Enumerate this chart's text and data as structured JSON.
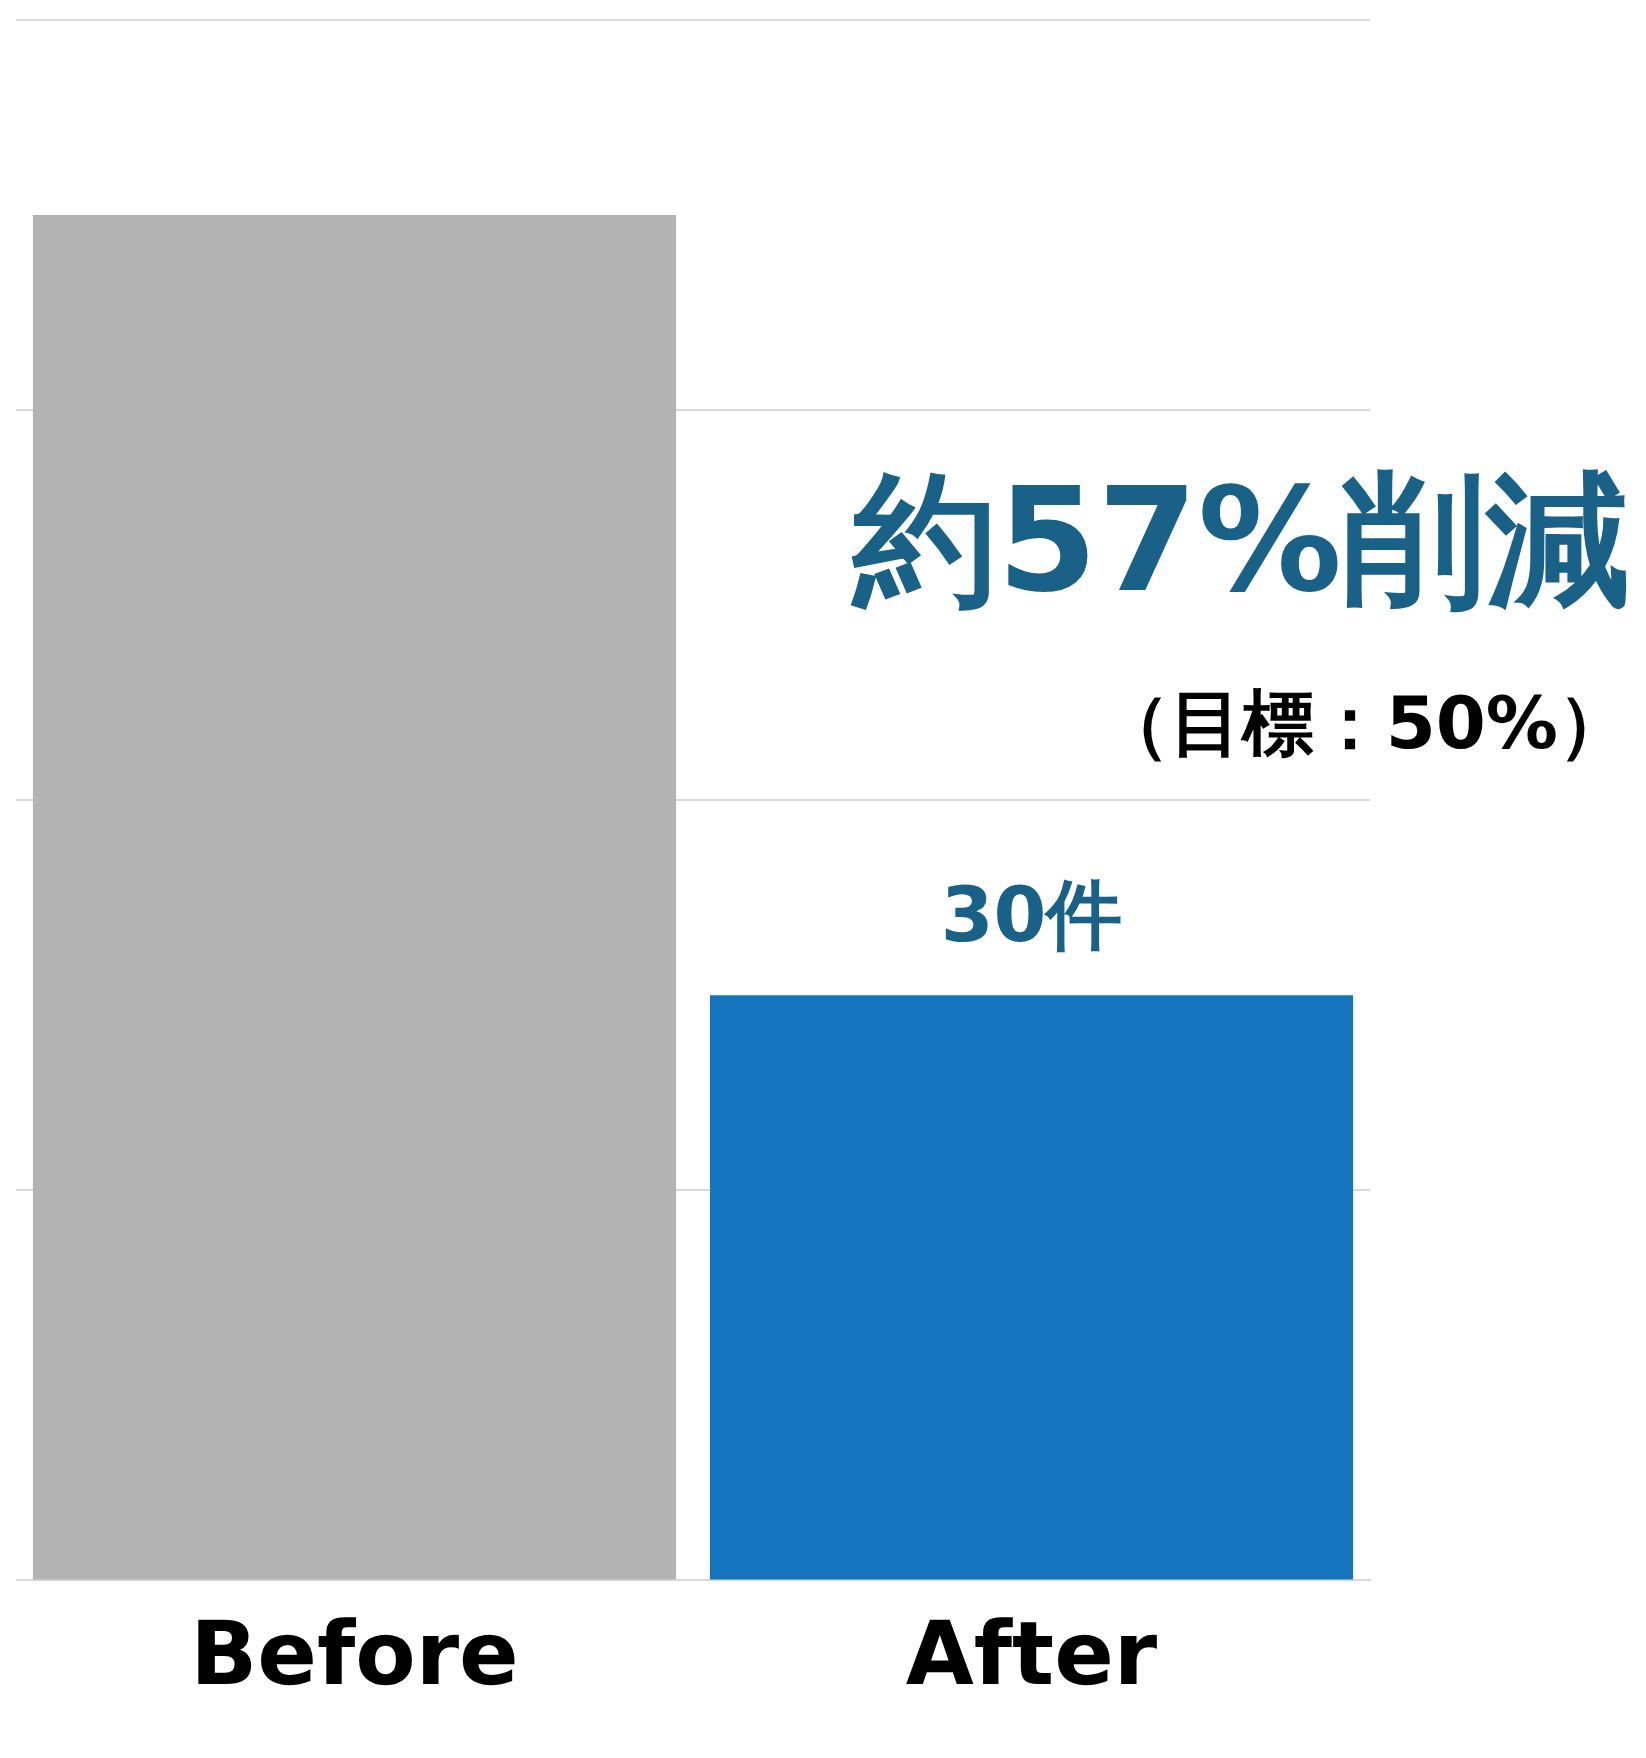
{
  "chart_data": {
    "type": "bar",
    "categories": [
      "Before",
      "After"
    ],
    "values": [
      70,
      30
    ],
    "colors": [
      "#b3b3b3",
      "#1475be"
    ],
    "value_labels": [
      null,
      "30件"
    ],
    "ylim": [
      0,
      80
    ],
    "yticks": [
      {
        "value": 0,
        "label": null
      },
      {
        "value": 20,
        "label": null
      },
      {
        "value": 40,
        "label": null
      },
      {
        "value": 60,
        "label": null
      },
      {
        "value": 80,
        "label": null
      }
    ],
    "grid": "y",
    "tick_labels": "x",
    "legend": false,
    "annotations": [
      "約57%削減",
      "（目標：50%）"
    ]
  }
}
